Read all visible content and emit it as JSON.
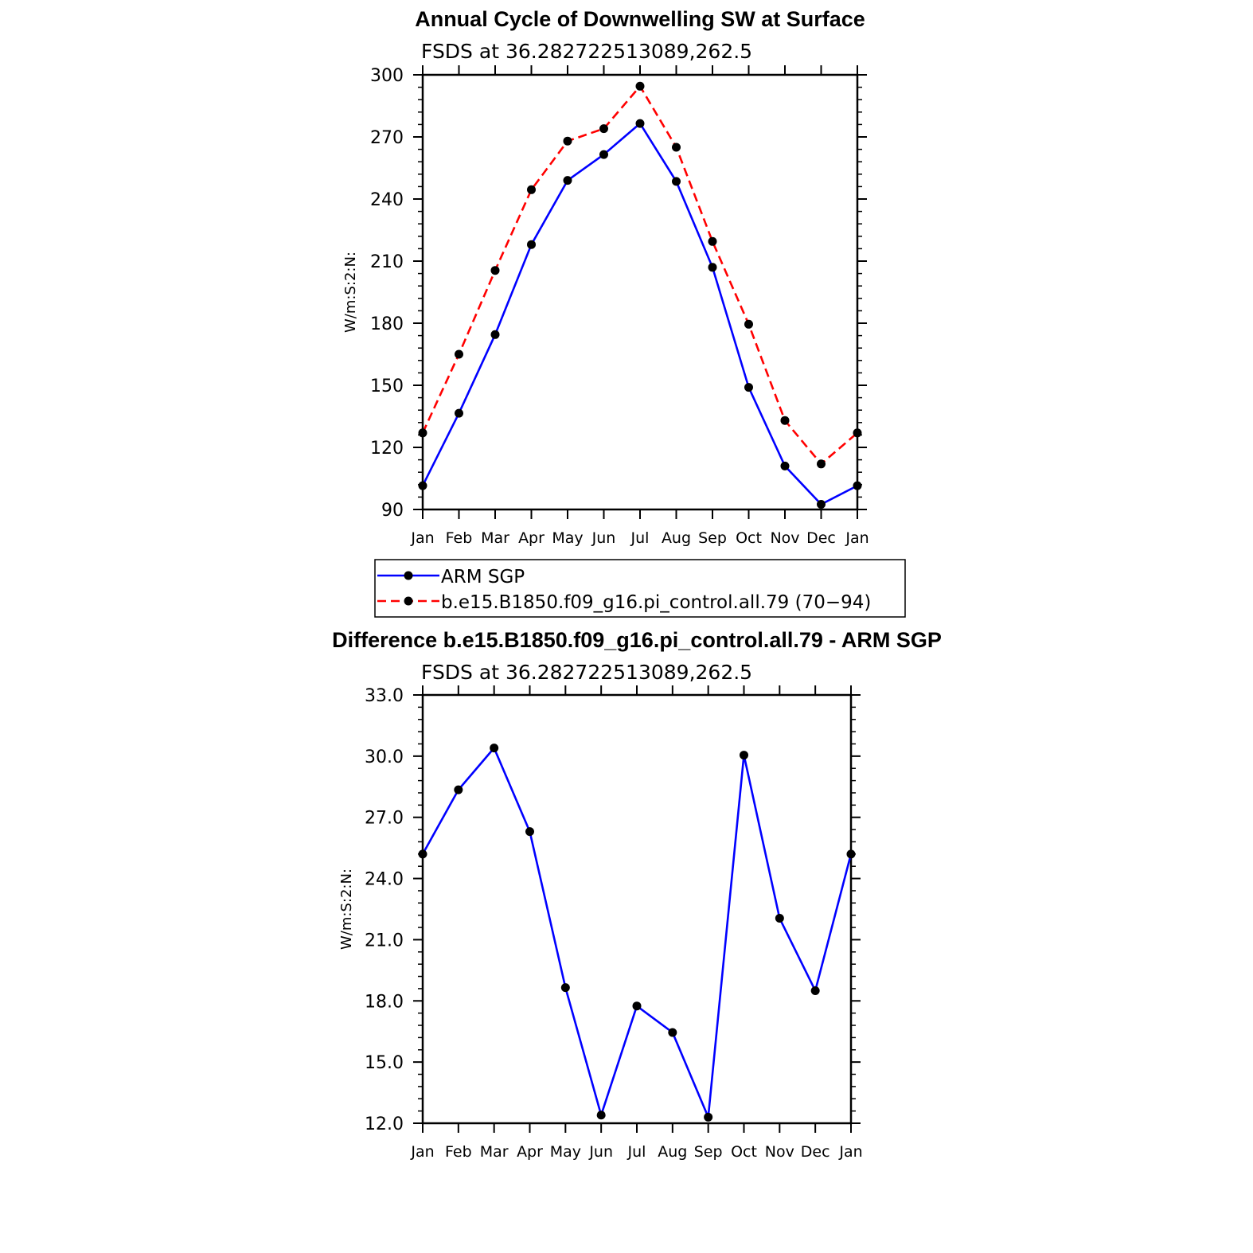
{
  "chart_data": [
    {
      "type": "line",
      "title": "Annual Cycle of Downwelling SW at Surface",
      "subtitle": "FSDS at 36.282722513089,262.5",
      "ylabel": "W/m:S:2:N:",
      "xlabel": "",
      "categories": [
        "Jan",
        "Feb",
        "Mar",
        "Apr",
        "May",
        "Jun",
        "Jul",
        "Aug",
        "Sep",
        "Oct",
        "Nov",
        "Dec",
        "Jan"
      ],
      "ylim": [
        90,
        300
      ],
      "yticks": [
        "90",
        "120",
        "150",
        "180",
        "210",
        "240",
        "270",
        "300"
      ],
      "grid": false,
      "series": [
        {
          "name": "ARM SGP",
          "color": "#0000ff",
          "dashed": false,
          "values": [
            101.5,
            136.5,
            174.5,
            218,
            249,
            261.5,
            276.5,
            248.5,
            207,
            149,
            111,
            92.5,
            101.5
          ]
        },
        {
          "name": "b.e15.B1850.f09_g16.pi_control.all.79 (70−94)",
          "color": "#ff0000",
          "dashed": true,
          "values": [
            127,
            165,
            205.5,
            244.5,
            268,
            274,
            294.5,
            265,
            219.5,
            179.5,
            133,
            112,
            127
          ]
        }
      ],
      "legend": {
        "placement": "bottom",
        "entries": [
          "ARM SGP",
          "b.e15.B1850.f09_g16.pi_control.all.79 (70−94)"
        ]
      }
    },
    {
      "type": "line",
      "title": "Difference b.e15.B1850.f09_g16.pi_control.all.79 - ARM SGP",
      "subtitle": "FSDS at 36.282722513089,262.5",
      "ylabel": "W/m:S:2:N:",
      "xlabel": "",
      "categories": [
        "Jan",
        "Feb",
        "Mar",
        "Apr",
        "May",
        "Jun",
        "Jul",
        "Aug",
        "Sep",
        "Oct",
        "Nov",
        "Dec",
        "Jan"
      ],
      "ylim": [
        12,
        33
      ],
      "yticks": [
        "12.0",
        "15.0",
        "18.0",
        "21.0",
        "24.0",
        "27.0",
        "30.0",
        "33.0"
      ],
      "grid": false,
      "series": [
        {
          "color": "#0000ff",
          "dashed": false,
          "values": [
            25.2,
            28.35,
            30.4,
            26.3,
            18.65,
            12.4,
            17.75,
            16.45,
            12.3,
            30.05,
            22.05,
            18.5,
            25.2
          ]
        }
      ]
    }
  ]
}
